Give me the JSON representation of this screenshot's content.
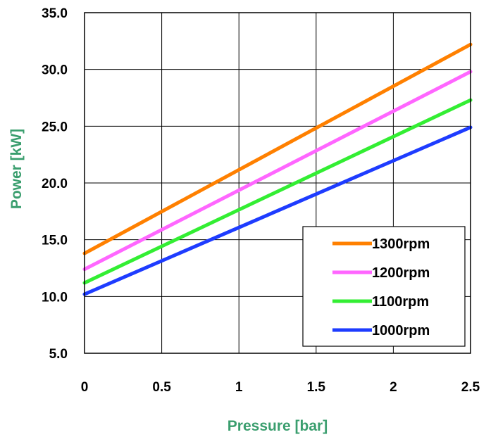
{
  "chart_data": {
    "type": "line",
    "xlabel": "Pressure [bar]",
    "ylabel": "Power [kW]",
    "xlim": [
      0,
      2.5
    ],
    "ylim": [
      5,
      35
    ],
    "x_ticks": [
      "0",
      "0.5",
      "1",
      "1.5",
      "2",
      "2.5"
    ],
    "x_tick_values": [
      0,
      0.5,
      1,
      1.5,
      2,
      2.5
    ],
    "y_ticks": [
      "35.0",
      "30.0",
      "25.0",
      "20.0",
      "15.0",
      "10.0",
      "5.0"
    ],
    "y_tick_values": [
      35,
      30,
      25,
      20,
      15,
      10,
      5
    ],
    "grid": true,
    "legend_position": "bottom-right",
    "x": [
      0,
      2.5
    ],
    "series": [
      {
        "name": "1300rpm",
        "values": [
          13.8,
          32.2
        ],
        "color": "#FF8000"
      },
      {
        "name": "1200rpm",
        "values": [
          12.4,
          29.8
        ],
        "color": "#FF66FF"
      },
      {
        "name": "1100rpm",
        "values": [
          11.2,
          27.3
        ],
        "color": "#33EE33"
      },
      {
        "name": "1000rpm",
        "values": [
          10.2,
          24.9
        ],
        "color": "#1E3CFF"
      }
    ],
    "label_color": "#3A9E6E"
  }
}
